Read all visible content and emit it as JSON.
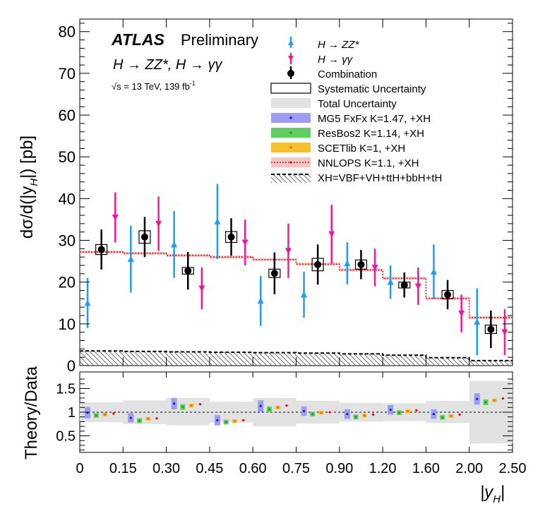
{
  "chart_data": [
    {
      "type": "scatter",
      "panel": "main",
      "title_atlas": "ATLAS",
      "title_prelim": "Preliminary",
      "channels_label": "H → ZZ*, H → γγ",
      "energy_label": "√s = 13 TeV, 139 fb",
      "lumi_sup": "-1",
      "ylabel": "dσ/d(|y",
      "ylabel_sub": "H",
      "ylabel_end": "|) [pb]",
      "ylim": [
        0,
        83
      ],
      "yticks": [
        "0",
        "10",
        "20",
        "30",
        "40",
        "50",
        "60",
        "70",
        "80"
      ],
      "bins": [
        0,
        0.15,
        0.3,
        0.45,
        0.6,
        0.75,
        0.9,
        1.2,
        1.6,
        2.0,
        2.5
      ],
      "bin_labels": [
        "0",
        "0.15",
        "0.30",
        "0.45",
        "0.60",
        "0.75",
        "0.90",
        "1.20",
        "1.60",
        "2.00",
        "2.50"
      ],
      "series": [
        {
          "name": "H → ZZ*",
          "values": [
            15.0,
            25.5,
            29.0,
            34.5,
            15.5,
            17.0,
            24.5,
            20.0,
            22.5,
            10.5
          ],
          "err": [
            6.0,
            8.0,
            8.0,
            9.0,
            6.0,
            5.5,
            5.0,
            4.0,
            6.5,
            8.0
          ]
        },
        {
          "name": "H → γγ",
          "values": [
            35.5,
            34.0,
            18.5,
            29.5,
            27.5,
            31.5,
            23.5,
            19.0,
            12.5,
            8.0
          ],
          "err": [
            6.0,
            6.5,
            5.0,
            5.5,
            6.5,
            7.0,
            4.5,
            4.5,
            4.5,
            5.5
          ]
        },
        {
          "name": "Combination",
          "values": [
            27.8,
            30.8,
            22.7,
            30.8,
            22.1,
            24.2,
            24.2,
            19.3,
            17.0,
            8.7
          ],
          "err": [
            4.8,
            4.8,
            4.5,
            4.5,
            5.0,
            4.8,
            3.5,
            3.0,
            3.5,
            4.5
          ],
          "syst": [
            1.2,
            1.5,
            0.8,
            1.3,
            1.0,
            1.5,
            1.1,
            0.7,
            1.0,
            1.0
          ]
        },
        {
          "name": "NNLOPS K=1.1, +XH",
          "values": [
            27.2,
            26.9,
            26.4,
            26.0,
            25.4,
            24.3,
            22.9,
            20.9,
            16.1,
            11.5
          ]
        },
        {
          "name": "XH=VBF+VH+ttH+bbH+tH",
          "values": [
            3.5,
            3.4,
            3.3,
            3.2,
            3.1,
            3.0,
            2.8,
            2.5,
            1.9,
            1.2
          ]
        }
      ]
    },
    {
      "type": "scatter",
      "panel": "ratio",
      "ylabel": "Theory/Data",
      "ylim": [
        0.15,
        1.85
      ],
      "yticks": [
        "0.5",
        "1",
        "1.5"
      ],
      "xlabel": "|y",
      "xlabel_sub": "H",
      "xlabel_end": "|",
      "total_unc": [
        [
          0.79,
          1.21
        ],
        [
          0.75,
          1.25
        ],
        [
          0.72,
          1.3
        ],
        [
          0.78,
          1.22
        ],
        [
          0.7,
          1.3
        ],
        [
          0.76,
          1.24
        ],
        [
          0.8,
          1.2
        ],
        [
          0.81,
          1.19
        ],
        [
          0.77,
          1.24
        ],
        [
          0.34,
          1.66
        ]
      ],
      "series": [
        {
          "name": "MG5 FxFx",
          "values": [
            0.99,
            0.88,
            1.18,
            0.83,
            1.13,
            1.02,
            0.96,
            1.05,
            0.96,
            1.28
          ],
          "err": [
            0.12,
            0.1,
            0.12,
            0.11,
            0.12,
            0.1,
            0.1,
            0.1,
            0.1,
            0.12
          ]
        },
        {
          "name": "ResBos2",
          "values": [
            0.93,
            0.82,
            1.11,
            0.79,
            1.06,
            0.96,
            0.9,
            0.99,
            0.89,
            1.21
          ],
          "err": [
            0.05,
            0.05,
            0.06,
            0.05,
            0.06,
            0.05,
            0.05,
            0.05,
            0.05,
            0.06
          ]
        },
        {
          "name": "SCETlib",
          "values": [
            0.95,
            0.86,
            1.14,
            0.81,
            1.1,
            0.99,
            0.93,
            1.02,
            0.92,
            1.25
          ],
          "err": [
            0.04,
            0.04,
            0.04,
            0.04,
            0.04,
            0.04,
            0.04,
            0.04,
            0.04,
            0.04
          ]
        },
        {
          "name": "NNLOPS",
          "values": [
            0.97,
            0.87,
            1.17,
            0.83,
            1.14,
            1.0,
            0.95,
            1.04,
            0.95,
            1.29
          ],
          "err": [
            0.02,
            0.02,
            0.02,
            0.02,
            0.02,
            0.02,
            0.02,
            0.02,
            0.02,
            0.02
          ]
        }
      ]
    }
  ],
  "legend": [
    {
      "label": "H → ZZ*",
      "kind": "zz"
    },
    {
      "label": "H → γγ",
      "kind": "gg"
    },
    {
      "label": "Combination",
      "kind": "comb"
    },
    {
      "label": "Systematic Uncertainty",
      "kind": "syst"
    },
    {
      "label": "Total Uncertainty",
      "kind": "total"
    },
    {
      "label": "MG5 FxFx K=1.47, +XH",
      "kind": "mg5"
    },
    {
      "label": "ResBos2 K=1.14, +XH",
      "kind": "resbos"
    },
    {
      "label": "SCETlib K=1, +XH",
      "kind": "scet"
    },
    {
      "label": "NNLOPS K=1.1, +XH",
      "kind": "nnlops"
    },
    {
      "label": "XH=VBF+VH+ttH+bbH+tH",
      "kind": "xh"
    }
  ],
  "colors": {
    "zz": "#1e9ef0",
    "gg": "#f0189a",
    "comb": "#000000",
    "mg5": "#9c9cf5",
    "mg5_dot": "#1a1ad6",
    "resbos": "#5fcf5f",
    "resbos_dot": "#1a9a1a",
    "scet": "#f7c02a",
    "scet_dot": "#e07010",
    "nnlops": "#f7c4c4",
    "nnlops_line": "#c81414",
    "total": "#e2e2e2"
  }
}
